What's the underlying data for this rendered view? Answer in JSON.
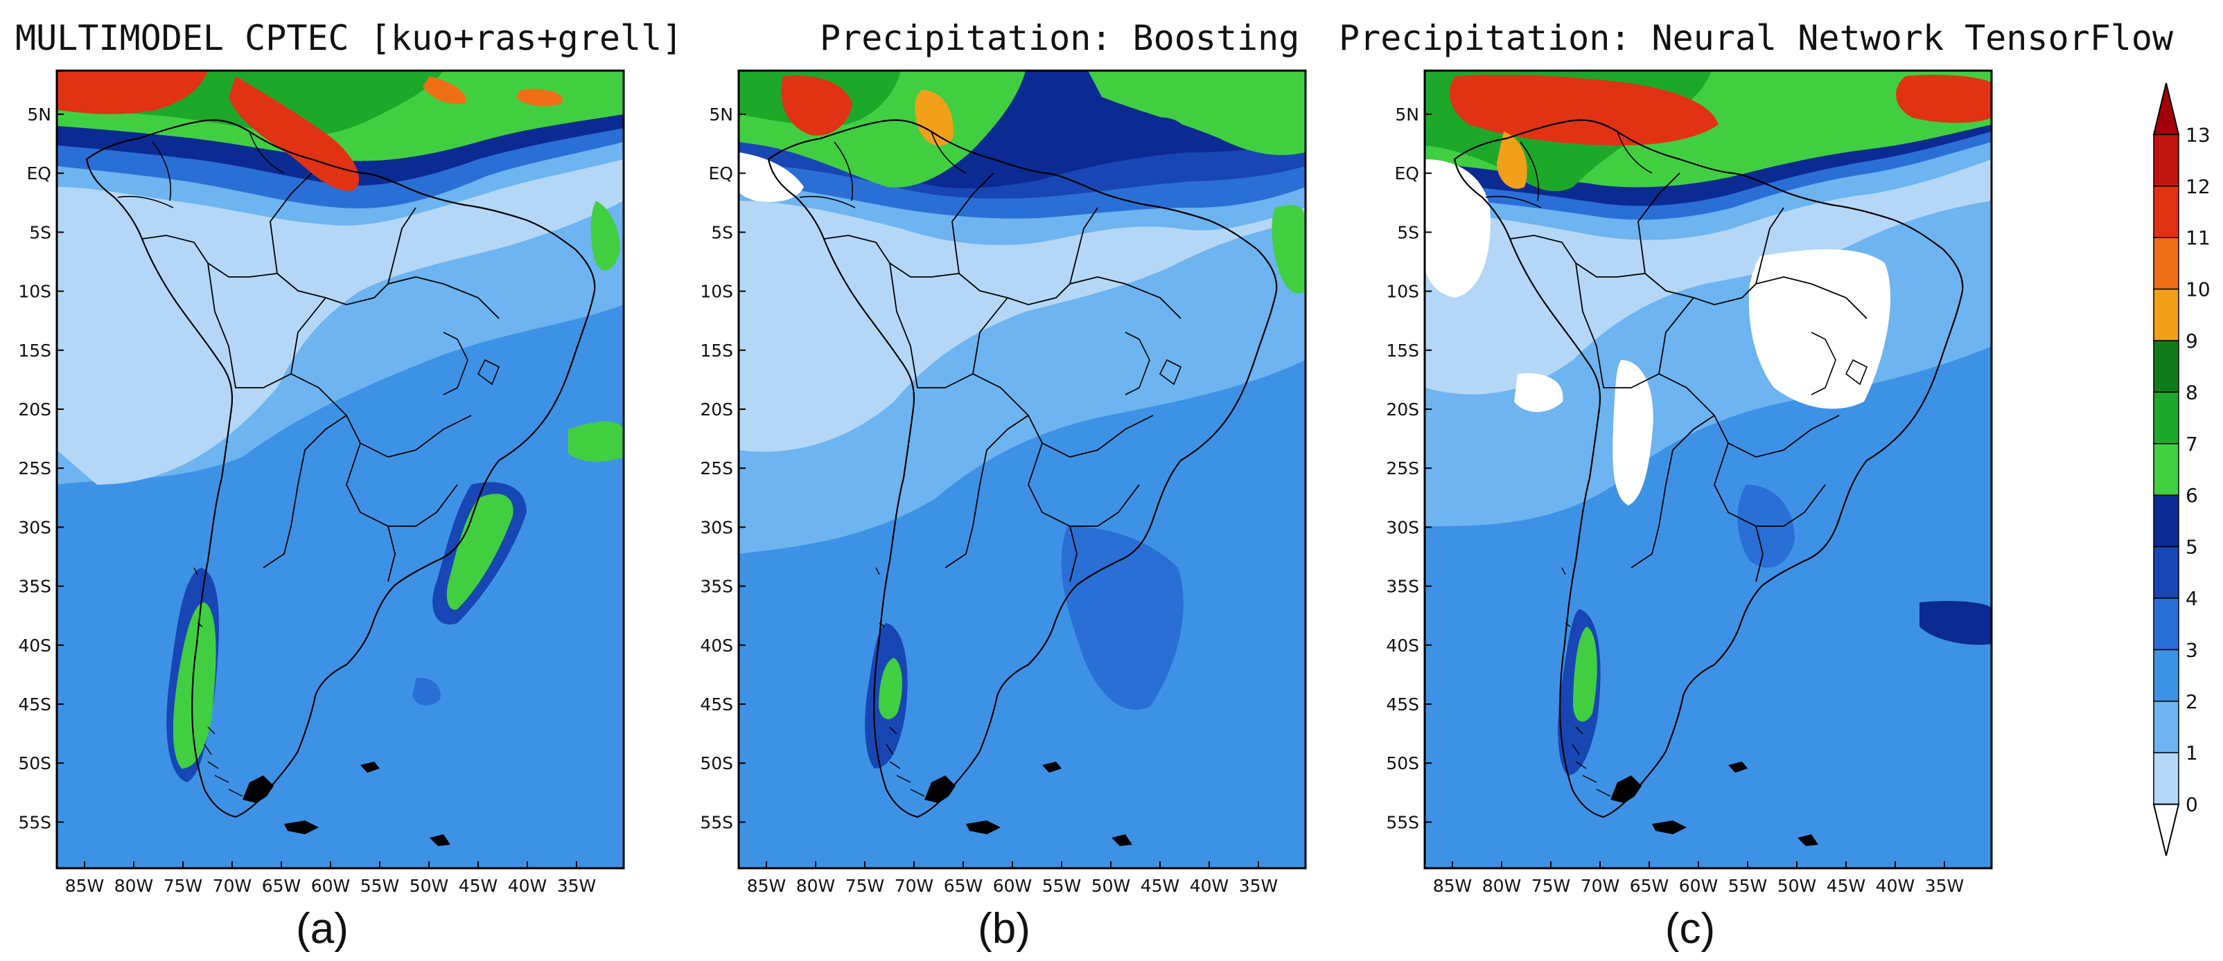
{
  "panels": [
    {
      "title": "MULTIMODEL CPTEC [kuo+ras+grell]",
      "tag": "(a)"
    },
    {
      "title": "Precipitation: Boosting",
      "tag": "(b)"
    },
    {
      "title": "Precipitation: Neural Network TensorFlow",
      "tag": "(c)"
    }
  ],
  "axes": {
    "lat_labels": [
      "5N",
      "EQ",
      "5S",
      "10S",
      "15S",
      "20S",
      "25S",
      "30S",
      "35S",
      "40S",
      "45S",
      "50S",
      "55S"
    ],
    "lon_labels": [
      "85W",
      "80W",
      "75W",
      "70W",
      "65W",
      "60W",
      "55W",
      "50W",
      "45W",
      "40W",
      "35W"
    ]
  },
  "colorbar": {
    "labels": [
      "0",
      "1",
      "2",
      "3",
      "4",
      "5",
      "6",
      "7",
      "8",
      "9",
      "10",
      "11",
      "12",
      "13"
    ],
    "colors": [
      "#ffffff",
      "#b4d7f7",
      "#6db4f0",
      "#3d92e6",
      "#2a6fd6",
      "#1846b4",
      "#0b2a92",
      "#41cf41",
      "#1ea82a",
      "#0f7b1b",
      "#f2a01a",
      "#f06e15",
      "#e13214",
      "#c0140f",
      "#a3000a"
    ]
  }
}
